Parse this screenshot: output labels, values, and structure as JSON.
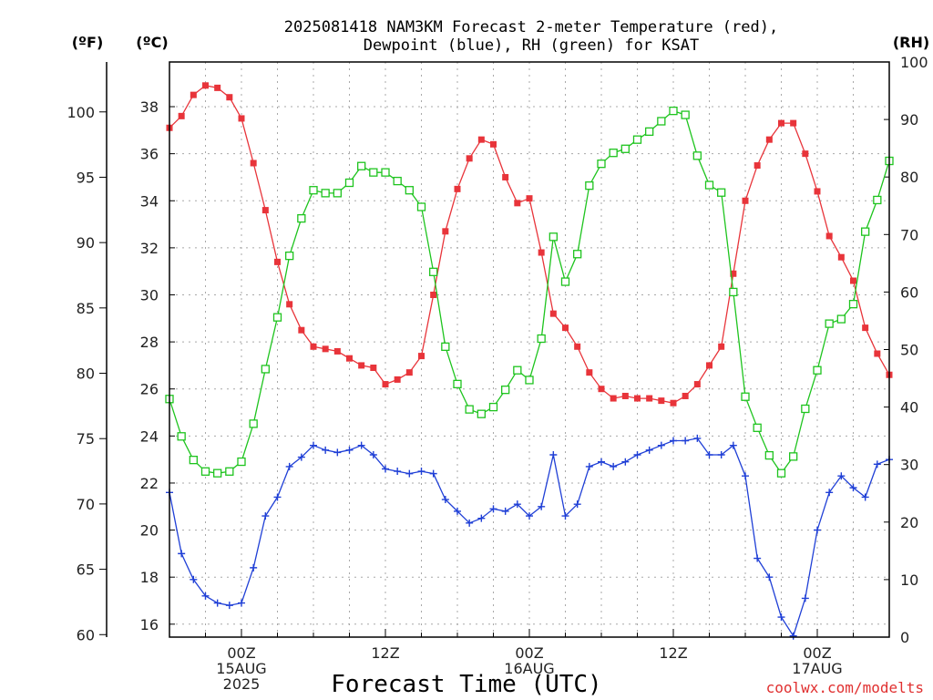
{
  "chart_data": {
    "type": "line",
    "title_line1": "2025081418 NAM3KM Forecast 2-meter Temperature (red),",
    "title_line2": "Dewpoint (blue), RH (green) for KSAT",
    "xlabel": "Forecast Time (UTC)",
    "credit": "coolwx.com/modelts",
    "unit_f": "(ºF)",
    "unit_c": "(ºC)",
    "unit_rh": "(RH)",
    "f_ticks": [
      "60",
      "65",
      "70",
      "75",
      "80",
      "85",
      "90",
      "95",
      "100"
    ],
    "c_ticks": [
      "16",
      "18",
      "20",
      "22",
      "24",
      "26",
      "28",
      "30",
      "32",
      "34",
      "36",
      "38"
    ],
    "rh_ticks": [
      "0",
      "10",
      "20",
      "30",
      "40",
      "50",
      "60",
      "70",
      "80",
      "90",
      "100"
    ],
    "ylim_c": [
      15.45,
      39.9
    ],
    "ylim_rh": [
      0,
      100
    ],
    "x_start_hour": 0,
    "x_end_hour": 60,
    "time_ticks": [
      {
        "hour": 6,
        "l1": "00Z",
        "l2": "15AUG",
        "l3": "2025"
      },
      {
        "hour": 18,
        "l1": "12Z",
        "l2": "",
        "l3": ""
      },
      {
        "hour": 30,
        "l1": "00Z",
        "l2": "16AUG",
        "l3": ""
      },
      {
        "hour": 42,
        "l1": "12Z",
        "l2": "",
        "l3": ""
      },
      {
        "hour": 54,
        "l1": "00Z",
        "l2": "17AUG",
        "l3": ""
      }
    ],
    "series": [
      {
        "color": "#e8343a",
        "marker": "filled-square",
        "axis": "c",
        "values": [
          37.1,
          37.6,
          38.5,
          38.9,
          38.8,
          38.4,
          37.5,
          35.6,
          33.6,
          31.4,
          29.6,
          28.5,
          27.8,
          27.7,
          27.6,
          27.3,
          27.0,
          26.9,
          26.2,
          26.4,
          26.7,
          27.4,
          30.0,
          32.7,
          34.5,
          35.8,
          36.6,
          36.4,
          35.0,
          33.9,
          34.1,
          31.8,
          29.2,
          28.6,
          27.8,
          26.7,
          26.0,
          25.6,
          25.7,
          25.6,
          25.6,
          25.5,
          25.4,
          25.7,
          26.2,
          27.0,
          27.8,
          30.9,
          34.0,
          35.5,
          36.6,
          37.3,
          37.3,
          36.0,
          34.4,
          32.5,
          31.6,
          30.6,
          28.6,
          27.5,
          26.6
        ]
      },
      {
        "color": "#1f3fd6",
        "marker": "plus",
        "axis": "c",
        "values": [
          21.6,
          19.0,
          17.9,
          17.2,
          16.9,
          16.8,
          16.9,
          18.4,
          20.6,
          21.4,
          22.7,
          23.1,
          23.6,
          23.4,
          23.3,
          23.4,
          23.6,
          23.2,
          22.6,
          22.5,
          22.4,
          22.5,
          22.4,
          21.3,
          20.8,
          20.3,
          20.5,
          20.9,
          20.8,
          21.1,
          20.6,
          21.0,
          23.2,
          20.6,
          21.1,
          22.7,
          22.9,
          22.7,
          22.9,
          23.2,
          23.4,
          23.6,
          23.8,
          23.8,
          23.9,
          23.2,
          23.2,
          23.6,
          22.3,
          18.8,
          18.0,
          16.3,
          15.5,
          17.1,
          20.0,
          21.6,
          22.3,
          21.8,
          21.4,
          22.8,
          23.0
        ]
      },
      {
        "color": "#1ec41e",
        "marker": "open-square",
        "axis": "rh",
        "values": [
          41.4,
          34.9,
          30.8,
          28.8,
          28.5,
          28.8,
          30.5,
          37.1,
          46.6,
          55.6,
          66.3,
          72.8,
          77.7,
          77.2,
          77.2,
          79.0,
          81.9,
          80.8,
          80.8,
          79.3,
          77.7,
          74.8,
          63.5,
          50.5,
          44.0,
          39.6,
          38.8,
          40.0,
          43.0,
          46.4,
          44.7,
          51.9,
          69.6,
          61.8,
          66.6,
          78.5,
          82.3,
          84.2,
          84.9,
          86.5,
          87.9,
          89.7,
          91.5,
          90.8,
          83.7,
          78.6,
          77.3,
          60.0,
          41.8,
          36.4,
          31.6,
          28.5,
          31.4,
          39.7,
          46.4,
          54.5,
          55.3,
          57.9,
          70.5,
          76.0,
          82.8
        ]
      }
    ]
  }
}
